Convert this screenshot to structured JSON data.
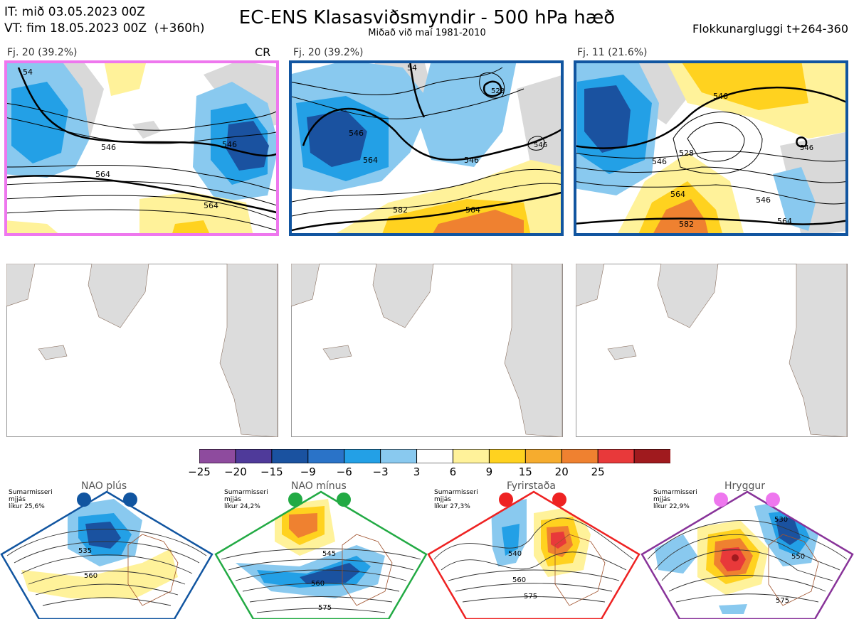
{
  "header": {
    "it_line": "IT: mið 03.05.2023 00Z",
    "vt_line": "VT: fim 18.05.2023 00Z  (+360h)",
    "title": "EC-ENS Klasasviðsmyndir - 500 hPa hæð",
    "subtitle": "Miðað við maí 1981-2010",
    "window": "Flokkunargluggi t+264-360"
  },
  "panels": [
    {
      "label": "Fj. 20 (39.2%)",
      "tag": "CR",
      "border_color": "#ee77ee",
      "contours": [
        "546",
        "546",
        "564",
        "564",
        "54"
      ]
    },
    {
      "label": "Fj. 20 (39.2%)",
      "tag": "",
      "border_color": "#1155a0",
      "contours": [
        "546",
        "564",
        "546",
        "564",
        "582",
        "528",
        "546",
        "54"
      ]
    },
    {
      "label": "Fj. 11 (21.6%)",
      "tag": "",
      "border_color": "#1155a0",
      "contours": [
        "546",
        "528",
        "546",
        "564",
        "582",
        "546",
        "564",
        "546"
      ]
    }
  ],
  "colorbar": {
    "colors": [
      "#8e4b9e",
      "#4f3a9a",
      "#1a52a0",
      "#2a73c8",
      "#23a0e6",
      "#89c9ef",
      "#ffffff",
      "#fff29a",
      "#ffd21f",
      "#f6ac2e",
      "#ef8130",
      "#e8393a",
      "#a01a1e"
    ],
    "ticks": [
      "−25",
      "−20",
      "−15",
      "−9",
      "−6",
      "−3",
      "3",
      "6",
      "9",
      "15",
      "20",
      "25"
    ]
  },
  "regimes": [
    {
      "name": "NAO plús",
      "info": [
        "Sumarmisseri",
        "mjjás",
        "líkur 25,6%"
      ],
      "dot_color": "#1155a0",
      "border_color": "#1155a0",
      "contours": [
        "535",
        "560"
      ]
    },
    {
      "name": "NAO mínus",
      "info": [
        "Sumarmisseri",
        "mjjás",
        "líkur 24,2%"
      ],
      "dot_color": "#22aa44",
      "border_color": "#22aa44",
      "contours": [
        "545",
        "560",
        "575"
      ]
    },
    {
      "name": "Fyrirstaða",
      "info": [
        "Sumarmisseri",
        "mjjás",
        "líkur 27,3%"
      ],
      "dot_color": "#ee2222",
      "border_color": "#ee2222",
      "contours": [
        "540",
        "560",
        "575"
      ]
    },
    {
      "name": "Hryggur",
      "info": [
        "Sumarmisseri",
        "mjjás",
        "líkur 22,9%"
      ],
      "dot_color": "#ee77ee",
      "border_color": "#883399",
      "contours": [
        "530",
        "550",
        "575"
      ]
    }
  ]
}
